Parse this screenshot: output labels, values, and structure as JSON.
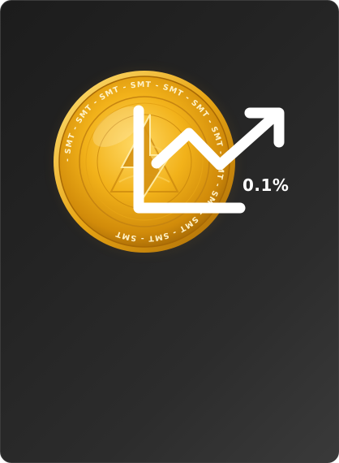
{
  "card": {
    "percent_label": "0.1%"
  },
  "coin": {
    "ticker_text": "SMT",
    "rim_text": "- SMT - SMT - SMT - SMT - SMT - SMT - SMT - SMT - SMT - SMT - SMT - SMT "
  },
  "icons": {
    "coin": "smt-coin-icon",
    "trend": "trend-up-arrow-icon"
  },
  "colors": {
    "card_bg": "#232323",
    "gold": "#f2b21a",
    "gold_dark": "#b87808",
    "arrow": "#ffffff"
  }
}
